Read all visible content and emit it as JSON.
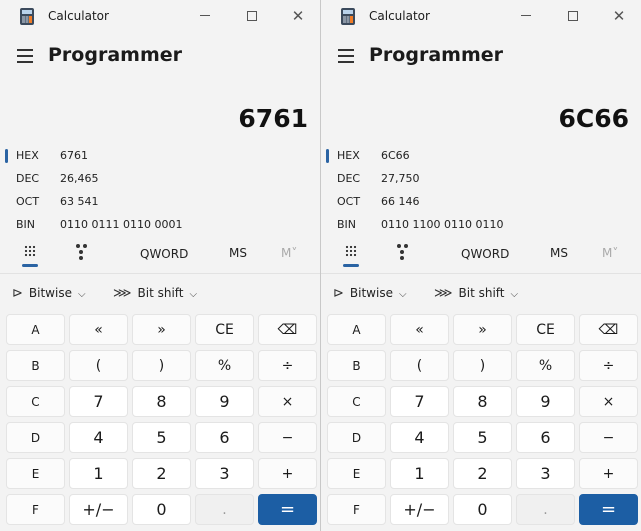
{
  "windows": [
    {
      "title": "Calculator",
      "mode": "Programmer",
      "display": "6761",
      "radix": [
        {
          "label": "HEX",
          "value": "6761",
          "active": true
        },
        {
          "label": "DEC",
          "value": "26,465",
          "active": false
        },
        {
          "label": "OCT",
          "value": "63 541",
          "active": false
        },
        {
          "label": "BIN",
          "value": "0110 0111 0110 0001",
          "active": false
        }
      ],
      "tabs": {
        "word_size": "QWORD",
        "ms": "MS",
        "mv": "M˅"
      },
      "functions": {
        "bitwise": "Bitwise",
        "bitshift": "Bit shift"
      },
      "keys": [
        [
          "A",
          "«",
          "»",
          "CE",
          "⌫"
        ],
        [
          "B",
          "(",
          ")",
          "%",
          "÷"
        ],
        [
          "C",
          "7",
          "8",
          "9",
          "×"
        ],
        [
          "D",
          "4",
          "5",
          "6",
          "−"
        ],
        [
          "E",
          "1",
          "2",
          "3",
          "+"
        ],
        [
          "F",
          "+/−",
          "0",
          ".",
          "="
        ]
      ]
    },
    {
      "title": "Calculator",
      "mode": "Programmer",
      "display": "6C66",
      "radix": [
        {
          "label": "HEX",
          "value": "6C66",
          "active": true
        },
        {
          "label": "DEC",
          "value": "27,750",
          "active": false
        },
        {
          "label": "OCT",
          "value": "66 146",
          "active": false
        },
        {
          "label": "BIN",
          "value": "0110 1100 0110 0110",
          "active": false
        }
      ],
      "tabs": {
        "word_size": "QWORD",
        "ms": "MS",
        "mv": "M˅"
      },
      "functions": {
        "bitwise": "Bitwise",
        "bitshift": "Bit shift"
      },
      "keys": [
        [
          "A",
          "«",
          "»",
          "CE",
          "⌫"
        ],
        [
          "B",
          "(",
          ")",
          "%",
          "÷"
        ],
        [
          "C",
          "7",
          "8",
          "9",
          "×"
        ],
        [
          "D",
          "4",
          "5",
          "6",
          "−"
        ],
        [
          "E",
          "1",
          "2",
          "3",
          "+"
        ],
        [
          "F",
          "+/−",
          "0",
          ".",
          "="
        ]
      ]
    }
  ],
  "accent_color": "#1c5ea4"
}
